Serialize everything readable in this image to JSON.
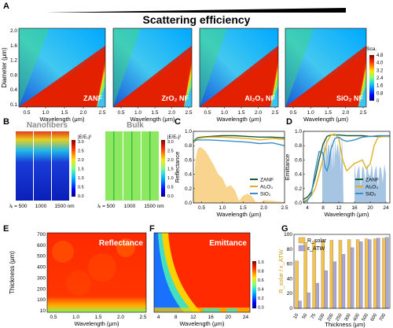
{
  "panel_letters": [
    "A",
    "B",
    "C",
    "D",
    "E",
    "F",
    "G"
  ],
  "panelA": {
    "title": "Scattering efficiency",
    "ylabel": "Diameter (μm)",
    "xlabel": "Wavelength (μm)",
    "y_ticks": [
      "2.0",
      "1.6",
      "1.2",
      "0.8",
      "0.4",
      "0.1"
    ],
    "x_ticks": [
      "0.5",
      "1.0",
      "1.5",
      "2.0",
      "2.5"
    ],
    "maps": [
      {
        "label": "ZANF"
      },
      {
        "label": "ZrO₂ NF"
      },
      {
        "label": "Al₂O₃ NF"
      },
      {
        "label": "SiO₂ NF"
      }
    ],
    "colorbar": {
      "title": "Sca.",
      "ticks": [
        "4.8",
        "4.0",
        "3.2",
        "2.4",
        "1.6",
        "0.8",
        "0"
      ]
    }
  },
  "panelB": {
    "nano_title": "Nanofibers",
    "bulk_title": "Bulk",
    "legend_ticks": [
      "3.0",
      "2.5",
      "2.0",
      "1.5",
      "1.0",
      "0.5",
      "0.0"
    ],
    "field_label": "|E/E₀|²",
    "x_labels": [
      "λᵢ = 500",
      "1000",
      "1500 nm"
    ],
    "x_labels_bulk": [
      "λᵢ = 500",
      "1000",
      "1500 nm"
    ]
  },
  "chart_data": [
    {
      "panel": "C",
      "type": "line",
      "xlabel": "Wavelength (μm)",
      "ylabel": "Reflectance",
      "xlim": [
        0.3,
        2.5
      ],
      "ylim": [
        0,
        1.0
      ],
      "x_ticks": [
        "0.5",
        "1.0",
        "1.5",
        "2.0",
        "2.5"
      ],
      "y_ticks": [
        "0.0",
        "0.2",
        "0.4",
        "0.6",
        "0.8",
        "1.0"
      ],
      "legend_position": "bottom-right",
      "series": [
        {
          "name": "ZANF",
          "color": "#1e5a2f",
          "x": [
            0.3,
            0.4,
            0.5,
            0.7,
            1.0,
            1.3,
            1.6,
            1.9,
            2.2,
            2.5
          ],
          "y": [
            0.86,
            0.91,
            0.92,
            0.93,
            0.94,
            0.94,
            0.93,
            0.92,
            0.92,
            0.91
          ]
        },
        {
          "name": "Al₂O₃",
          "color": "#e0b020",
          "x": [
            0.3,
            0.4,
            0.5,
            0.7,
            1.0,
            1.3,
            1.6,
            1.9,
            2.2,
            2.5
          ],
          "y": [
            0.84,
            0.9,
            0.91,
            0.92,
            0.92,
            0.91,
            0.9,
            0.88,
            0.9,
            0.89
          ]
        },
        {
          "name": "SiO₂",
          "color": "#3b8ec8",
          "x": [
            0.3,
            0.4,
            0.5,
            0.7,
            1.0,
            1.3,
            1.6,
            1.9,
            2.2,
            2.5
          ],
          "y": [
            0.87,
            0.88,
            0.88,
            0.88,
            0.87,
            0.86,
            0.85,
            0.83,
            0.84,
            0.8
          ]
        }
      ],
      "background_spectrum": {
        "color": "#f5c56a",
        "x": [
          0.3,
          0.35,
          0.4,
          0.45,
          0.5,
          0.6,
          0.7,
          0.8,
          0.9,
          1.0,
          1.1,
          1.2,
          1.3,
          1.4,
          1.5,
          1.6,
          1.7,
          1.8,
          1.9,
          2.0,
          2.2,
          2.5
        ],
        "y": [
          0.05,
          0.6,
          0.75,
          0.78,
          0.77,
          0.72,
          0.62,
          0.52,
          0.4,
          0.35,
          0.22,
          0.25,
          0.18,
          0.03,
          0.1,
          0.13,
          0.1,
          0.02,
          0.01,
          0.04,
          0.03,
          0.01
        ]
      }
    },
    {
      "panel": "D",
      "type": "line",
      "xlabel": "Wavelength (μm)",
      "ylabel": "Emittance",
      "xlim": [
        3,
        25
      ],
      "ylim": [
        0,
        1.0
      ],
      "x_ticks": [
        "4",
        "8",
        "12",
        "16",
        "20",
        "24"
      ],
      "y_ticks": [
        "0.0",
        "0.2",
        "0.4",
        "0.6",
        "0.8",
        "1.0"
      ],
      "legend_position": "bottom-right",
      "series": [
        {
          "name": "ZANF",
          "color": "#1e5a2f",
          "x": [
            3,
            4,
            5,
            6,
            7,
            8,
            9,
            10,
            11,
            12,
            14,
            16,
            18,
            20,
            22,
            24,
            25
          ],
          "y": [
            0.05,
            0.08,
            0.15,
            0.35,
            0.6,
            0.82,
            0.93,
            0.95,
            0.95,
            0.95,
            0.94,
            0.94,
            0.94,
            0.93,
            0.93,
            0.93,
            0.93
          ]
        },
        {
          "name": "Al₂O₃",
          "color": "#e0b020",
          "x": [
            3,
            4,
            5,
            6,
            7,
            8,
            9,
            10,
            11,
            12,
            13,
            14,
            16,
            18,
            19,
            20,
            21,
            22,
            24,
            25
          ],
          "y": [
            0.02,
            0.05,
            0.1,
            0.2,
            0.4,
            0.62,
            0.85,
            0.95,
            0.96,
            0.9,
            0.6,
            0.45,
            0.55,
            0.6,
            0.48,
            0.55,
            0.8,
            0.92,
            0.93,
            0.93
          ]
        },
        {
          "name": "SiO₂",
          "color": "#3b8ec8",
          "x": [
            3,
            4,
            5,
            6,
            7,
            8,
            8.5,
            9,
            9.5,
            10,
            11,
            12,
            13,
            14,
            16,
            18,
            20,
            22,
            24,
            25
          ],
          "y": [
            0.01,
            0.03,
            0.12,
            0.45,
            0.72,
            0.7,
            0.5,
            0.45,
            0.55,
            0.75,
            0.9,
            0.92,
            0.88,
            0.86,
            0.88,
            0.92,
            0.93,
            0.94,
            0.94,
            0.94
          ]
        }
      ],
      "background_spectrum": {
        "color": "#8fb6dc"
      }
    },
    {
      "panel": "E",
      "type": "heatmap",
      "title": "Reflectance",
      "xlabel": "Wavelength (μm)",
      "ylabel": "Thickness (μm)",
      "x_ticks": [
        "0.5",
        "1.0",
        "1.5",
        "2.0",
        "2.5"
      ],
      "y_ticks": [
        "700",
        "600",
        "500",
        "400",
        "300",
        "200",
        "100",
        "10"
      ]
    },
    {
      "panel": "F",
      "type": "heatmap",
      "title": "Emittance",
      "xlabel": "Wavelength (μm)",
      "x_ticks": [
        "4",
        "8",
        "12",
        "16",
        "20",
        "24"
      ],
      "colorbar_ticks": [
        "1.0",
        "0.8",
        "0.6",
        "0.4",
        "0.2",
        "0.0"
      ]
    },
    {
      "panel": "G",
      "type": "bar",
      "xlabel": "Thickness (μm)",
      "ylabel": "R_solar / ε_ATW",
      "ylim": [
        0,
        100
      ],
      "y_ticks": [
        "0",
        "20",
        "40",
        "60",
        "80",
        "100"
      ],
      "categories": [
        "10",
        "50",
        "75",
        "100",
        "200",
        "250",
        "300",
        "400",
        "500",
        "600",
        "700"
      ],
      "legend_position": "top-left",
      "series": [
        {
          "name": "R_solar",
          "color": "#f5c24a",
          "values": [
            64,
            89,
            91,
            91,
            92,
            92,
            93,
            93,
            94,
            94,
            95
          ]
        },
        {
          "name": "ε_ATW",
          "color": "#a9a6d8",
          "values": [
            10,
            21,
            34,
            51,
            63,
            73,
            82,
            90,
            93,
            95,
            96
          ]
        }
      ]
    }
  ]
}
